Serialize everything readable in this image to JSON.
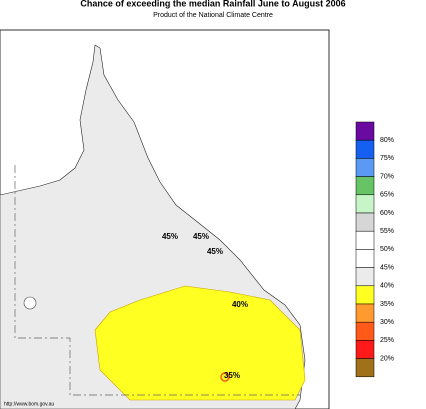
{
  "header": {
    "title": "Chance of exceeding the median Rainfall June to August 2006",
    "subtitle": "Product of the National Climate Centre"
  },
  "legend": {
    "colors": [
      "#6a0aa0",
      "#1560f0",
      "#5a9af5",
      "#66c466",
      "#c8f5c8",
      "#d6d6d6",
      "#ffffff",
      "#ffffff",
      "#ebebeb",
      "#ffff22",
      "#ff9a30",
      "#ff5a1a",
      "#ff1a1a",
      "#a0701a"
    ],
    "labels": [
      "80%",
      "75%",
      "70%",
      "65%",
      "60%",
      "55%",
      "50%",
      "45%",
      "40%",
      "35%",
      "30%",
      "25%",
      "20%"
    ]
  },
  "map": {
    "contour_labels": [
      "45%",
      "45%",
      "45%",
      "40%",
      "35%"
    ]
  },
  "footer": {
    "url": "http://www.bom.gov.au"
  }
}
